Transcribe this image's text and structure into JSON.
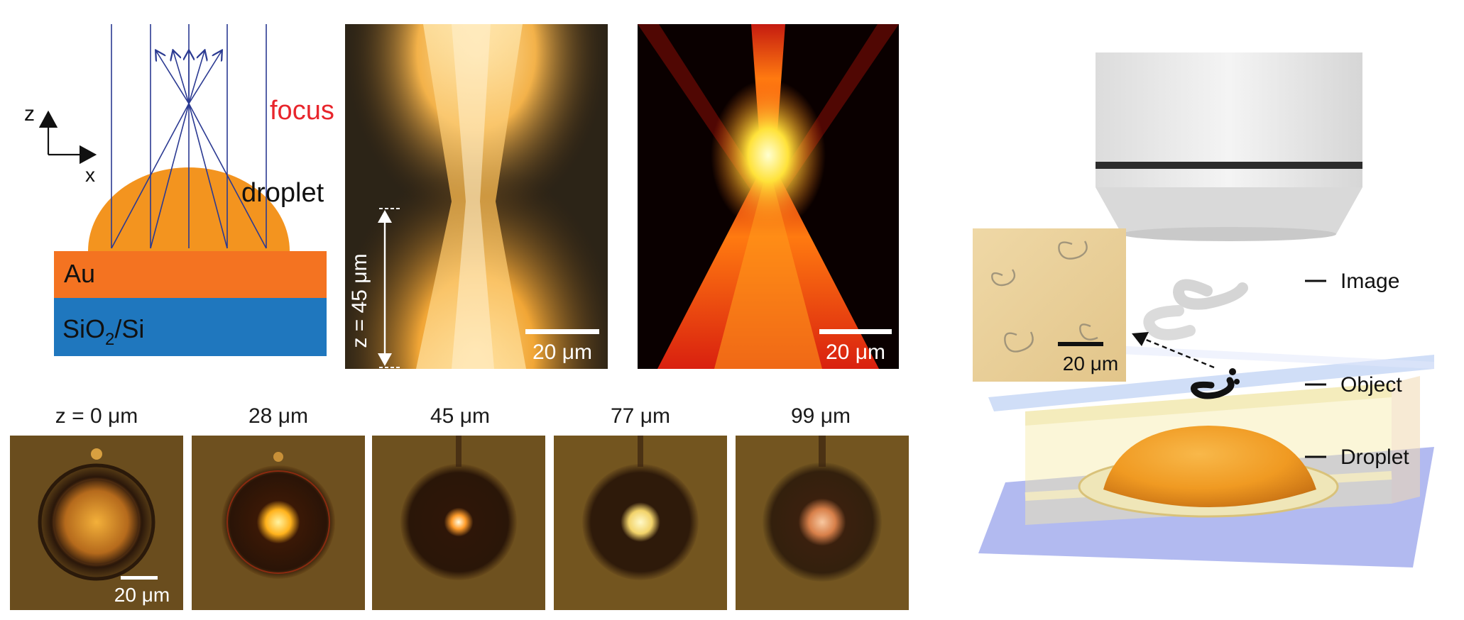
{
  "schematic": {
    "axis_z": "z",
    "axis_x": "x",
    "focus_label": "focus",
    "droplet_label": "droplet",
    "layer_top": "Au",
    "layer_bottom_main": "SiO",
    "layer_bottom_sub": "2",
    "layer_bottom_rest": "/Si",
    "colors": {
      "droplet": "#f3941f",
      "au": "#f47321",
      "substrate": "#1f77be",
      "rays": "#2b3a92",
      "focus": "#e8252c"
    }
  },
  "exp_panel": {
    "z_label": "z = 45 μm",
    "scale_label": "20 μm"
  },
  "sim_panel": {
    "scale_label": "20 μm"
  },
  "series": {
    "frames": [
      {
        "label": "z = 0 μm"
      },
      {
        "label": "28 μm"
      },
      {
        "label": "45 μm"
      },
      {
        "label": "77 μm"
      },
      {
        "label": "99 μm"
      }
    ],
    "scale_label": "20 μm"
  },
  "setup": {
    "inset_scale": "20 μm",
    "legend": {
      "image": "Image",
      "object": "Object",
      "droplet": "Droplet"
    }
  }
}
